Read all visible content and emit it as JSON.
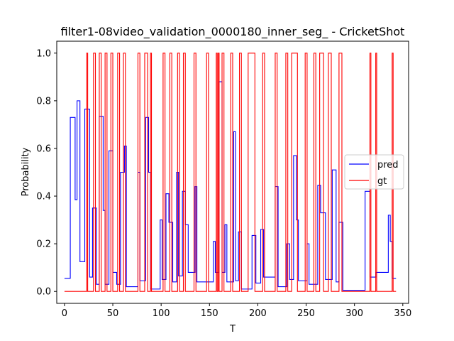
{
  "chart_data": {
    "type": "line",
    "title": "filter1-08video_validation_0000180_inner_seg_ - CricketShot",
    "xlabel": "T",
    "ylabel": "Probability",
    "xlim": [
      -8,
      356
    ],
    "ylim": [
      -0.05,
      1.05
    ],
    "xticks": [
      0,
      50,
      100,
      150,
      200,
      250,
      300,
      350
    ],
    "yticks": [
      0.0,
      0.2,
      0.4,
      0.6,
      0.8,
      1.0
    ],
    "xtick_labels": [
      "0",
      "50",
      "100",
      "150",
      "200",
      "250",
      "300",
      "350"
    ],
    "ytick_labels": [
      "0.0",
      "0.2",
      "0.4",
      "0.6",
      "0.8",
      "1.0"
    ],
    "legend_position": "center-right",
    "series": [
      {
        "name": "pred",
        "color": "#0000ff",
        "step": "post",
        "points": [
          [
            0,
            0.055
          ],
          [
            6,
            0.73
          ],
          [
            11,
            0.385
          ],
          [
            13,
            0.8
          ],
          [
            16,
            0.125
          ],
          [
            21,
            0.765
          ],
          [
            26,
            0.06
          ],
          [
            29,
            0.35
          ],
          [
            33,
            0.03
          ],
          [
            36,
            0.735
          ],
          [
            40,
            0.34
          ],
          [
            42,
            0.03
          ],
          [
            46,
            0.59
          ],
          [
            50,
            0.08
          ],
          [
            54,
            0.03
          ],
          [
            58,
            0.5
          ],
          [
            62,
            0.61
          ],
          [
            64,
            0.02
          ],
          [
            76,
            0.5
          ],
          [
            78,
            0.045
          ],
          [
            84,
            0.73
          ],
          [
            87,
            0.5
          ],
          [
            89,
            0.01
          ],
          [
            99,
            0.3
          ],
          [
            101,
            0.05
          ],
          [
            105,
            0.41
          ],
          [
            108,
            0.29
          ],
          [
            112,
            0.04
          ],
          [
            116,
            0.5
          ],
          [
            118,
            0.065
          ],
          [
            122,
            0.42
          ],
          [
            125,
            0.28
          ],
          [
            128,
            0.08
          ],
          [
            135,
            0.44
          ],
          [
            137,
            0.04
          ],
          [
            154,
            0.21
          ],
          [
            156,
            0.08
          ],
          [
            160,
            0.88
          ],
          [
            163,
            0.08
          ],
          [
            166,
            0.28
          ],
          [
            168,
            0.04
          ],
          [
            175,
            0.67
          ],
          [
            177,
            0.045
          ],
          [
            180,
            0.25
          ],
          [
            183,
            0.01
          ],
          [
            194,
            0.235
          ],
          [
            198,
            0.035
          ],
          [
            203,
            0.26
          ],
          [
            206,
            0.06
          ],
          [
            218,
            0.44
          ],
          [
            221,
            0.02
          ],
          [
            230,
            0.2
          ],
          [
            233,
            0.05
          ],
          [
            237,
            0.57
          ],
          [
            240,
            0.3
          ],
          [
            242,
            0.045
          ],
          [
            251,
            0.2
          ],
          [
            253,
            0.03
          ],
          [
            262,
            0.445
          ],
          [
            265,
            0.33
          ],
          [
            270,
            0.05
          ],
          [
            277,
            0.51
          ],
          [
            281,
            0.04
          ],
          [
            284,
            0.29
          ],
          [
            288,
            0.005
          ],
          [
            311,
            0.42
          ],
          [
            316,
            0.06
          ],
          [
            322,
            0.08
          ],
          [
            335,
            0.32
          ],
          [
            337,
            0.21
          ],
          [
            339,
            0.055
          ],
          [
            343,
            0.055
          ]
        ]
      },
      {
        "name": "gt",
        "color": "#ff0000",
        "step": "post",
        "points": [
          [
            0,
            0
          ],
          [
            23,
            1
          ],
          [
            24,
            0
          ],
          [
            30,
            1
          ],
          [
            32,
            0
          ],
          [
            36,
            1
          ],
          [
            38,
            0
          ],
          [
            42,
            1
          ],
          [
            44,
            0
          ],
          [
            48,
            1
          ],
          [
            50,
            0
          ],
          [
            55,
            1
          ],
          [
            57,
            0
          ],
          [
            61,
            1
          ],
          [
            63,
            0
          ],
          [
            76,
            1
          ],
          [
            78,
            0
          ],
          [
            83,
            1
          ],
          [
            86,
            0
          ],
          [
            89,
            1
          ],
          [
            90,
            0
          ],
          [
            102,
            1
          ],
          [
            104,
            0
          ],
          [
            109,
            1
          ],
          [
            111,
            0
          ],
          [
            117,
            1
          ],
          [
            119,
            0
          ],
          [
            123,
            1
          ],
          [
            125,
            0
          ],
          [
            134,
            1
          ],
          [
            136,
            0
          ],
          [
            147,
            1
          ],
          [
            149,
            0
          ],
          [
            157,
            1
          ],
          [
            158,
            0
          ],
          [
            159,
            1
          ],
          [
            160,
            0
          ],
          [
            163,
            1
          ],
          [
            165,
            0
          ],
          [
            172,
            1
          ],
          [
            174,
            0
          ],
          [
            181,
            1
          ],
          [
            183,
            0
          ],
          [
            190,
            1
          ],
          [
            197,
            0
          ],
          [
            205,
            1
          ],
          [
            207,
            0
          ],
          [
            218,
            1
          ],
          [
            220,
            0
          ],
          [
            229,
            1
          ],
          [
            231,
            0
          ],
          [
            235,
            1
          ],
          [
            241,
            0
          ],
          [
            249,
            1
          ],
          [
            251,
            0
          ],
          [
            258,
            1
          ],
          [
            260,
            0
          ],
          [
            264,
            1
          ],
          [
            268,
            0
          ],
          [
            273,
            1
          ],
          [
            276,
            0
          ],
          [
            284,
            1
          ],
          [
            287,
            0
          ],
          [
            316,
            1
          ],
          [
            317,
            0
          ],
          [
            322,
            1
          ],
          [
            323,
            0
          ],
          [
            339,
            1
          ],
          [
            340,
            0
          ],
          [
            343,
            0
          ]
        ]
      }
    ]
  }
}
